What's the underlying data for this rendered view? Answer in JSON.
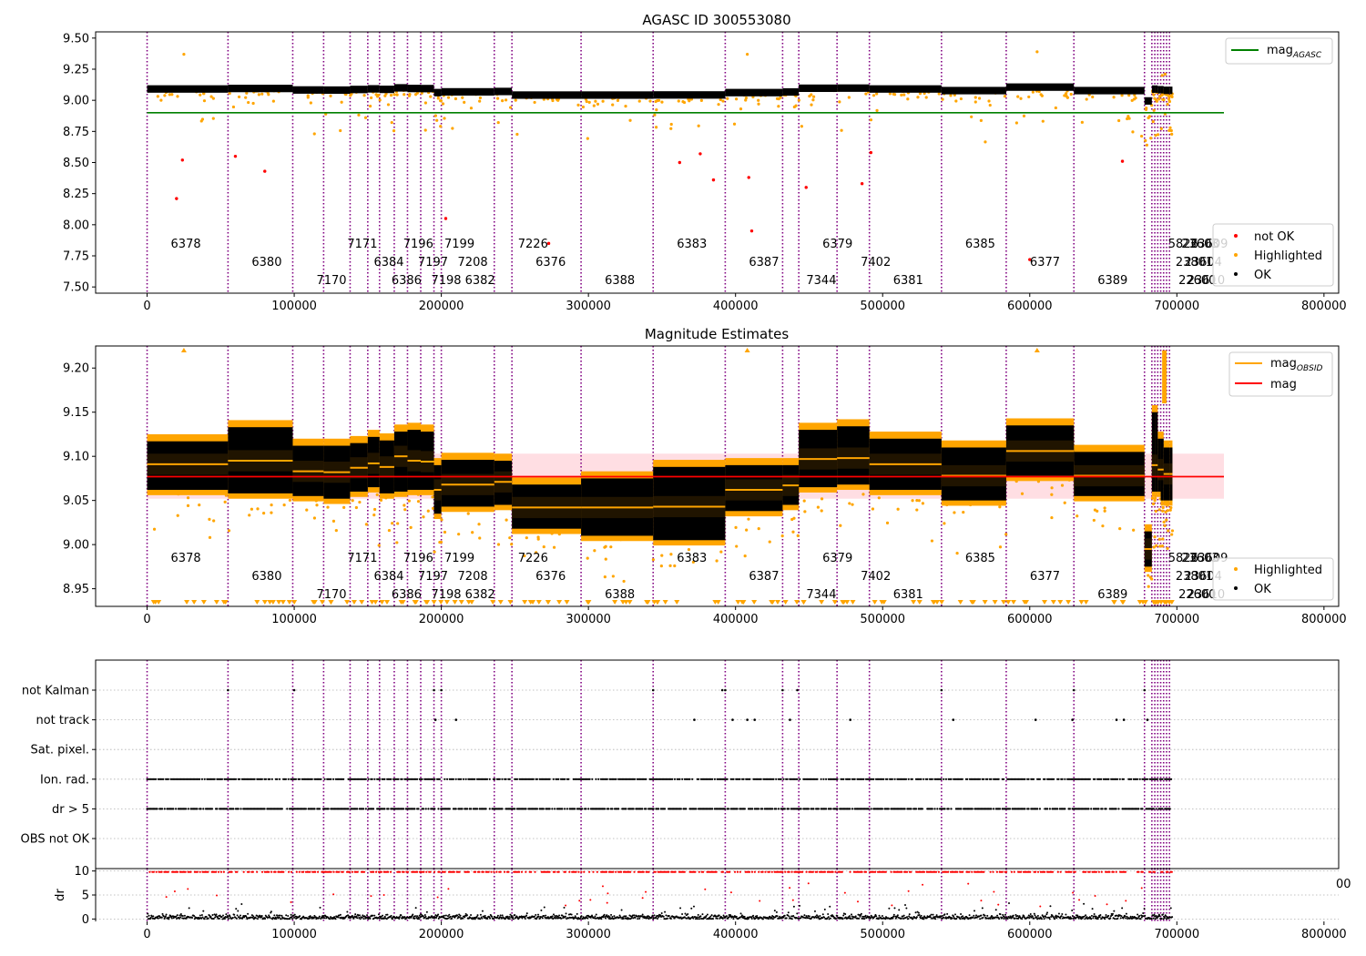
{
  "chart_data": [
    {
      "type": "scatter",
      "title": "AGASC ID 300553080",
      "xlabel": "",
      "ylabel": "",
      "xlim": [
        -35000,
        810000
      ],
      "ylim": [
        7.45,
        9.55
      ],
      "x_ticks": [
        0,
        100000,
        200000,
        300000,
        400000,
        500000,
        600000,
        700000,
        800000
      ],
      "x_tick_labels": [
        "0",
        "100000",
        "200000",
        "300000",
        "400000",
        "500000",
        "600000",
        "700000",
        "800000"
      ],
      "y_ticks": [
        7.5,
        7.75,
        8.0,
        8.25,
        8.5,
        8.75,
        9.0,
        9.25,
        9.5
      ],
      "y_tick_labels": [
        "7.50",
        "7.75",
        "8.00",
        "8.25",
        "8.50",
        "8.75",
        "9.00",
        "9.25",
        "9.50"
      ],
      "legend_top": {
        "position": "top-right",
        "entries": [
          {
            "label": "mag",
            "sub": "AGASC",
            "color": "#008000"
          }
        ]
      },
      "legend_bottom": {
        "position": "lower-right",
        "entries": [
          {
            "label": "not OK",
            "color": "#ff0000"
          },
          {
            "label": "Highlighted",
            "color": "#ffa500"
          },
          {
            "label": "OK",
            "color": "#000000"
          }
        ]
      },
      "mag_agasc": 8.9,
      "mag_agasc_x_range": [
        0,
        732000
      ],
      "series": [
        {
          "name": "OK",
          "color": "#000000",
          "band_halfwidth": 0.025
        },
        {
          "name": "Highlighted",
          "color": "#ffa500"
        },
        {
          "name": "not OK",
          "color": "#ff0000",
          "points": [
            [
              20000,
              8.21
            ],
            [
              24000,
              8.52
            ],
            [
              60000,
              8.55
            ],
            [
              80000,
              8.43
            ],
            [
              203000,
              8.05
            ],
            [
              273000,
              7.85
            ],
            [
              362000,
              8.5
            ],
            [
              376000,
              8.57
            ],
            [
              385000,
              8.36
            ],
            [
              409000,
              8.38
            ],
            [
              411000,
              7.95
            ],
            [
              448000,
              8.3
            ],
            [
              486000,
              8.33
            ],
            [
              492000,
              8.58
            ],
            [
              663000,
              8.51
            ],
            [
              600000,
              7.72
            ]
          ]
        }
      ]
    },
    {
      "type": "scatter",
      "title": "Magnitude Estimates",
      "xlabel": "",
      "ylabel": "",
      "xlim": [
        -35000,
        810000
      ],
      "ylim": [
        8.93,
        9.225
      ],
      "x_ticks": [
        0,
        100000,
        200000,
        300000,
        400000,
        500000,
        600000,
        700000,
        800000
      ],
      "x_tick_labels": [
        "0",
        "100000",
        "200000",
        "300000",
        "400000",
        "500000",
        "600000",
        "700000",
        "800000"
      ],
      "y_ticks": [
        8.95,
        9.0,
        9.05,
        9.1,
        9.15,
        9.2
      ],
      "y_tick_labels": [
        "8.95",
        "9.00",
        "9.05",
        "9.10",
        "9.15",
        "9.20"
      ],
      "legend_top": {
        "position": "top-right",
        "entries": [
          {
            "label": "mag",
            "sub": "OBSID",
            "color": "#ffa500"
          },
          {
            "label": "mag",
            "sub": "",
            "color": "#ff0000"
          }
        ]
      },
      "legend_bottom": {
        "position": "lower-right",
        "entries": [
          {
            "label": "Highlighted",
            "color": "#ffa500"
          },
          {
            "label": "OK",
            "color": "#000000"
          }
        ]
      },
      "mag": 9.077,
      "mag_band": [
        9.052,
        9.103
      ],
      "mag_x_range": [
        0,
        732000
      ]
    },
    {
      "type": "scatter",
      "title": "",
      "xlabel": "",
      "ylabel": "",
      "categories": [
        "not Kalman",
        "not track",
        "Sat. pixel.",
        "Ion. rad.",
        "dr > 5",
        "OBS not OK"
      ],
      "xlim": [
        -35000,
        810000
      ],
      "flags": {
        "not Kalman": [
          55000,
          100000,
          195000,
          200000,
          344000,
          391000,
          393000,
          432000,
          442000,
          540000,
          630000,
          678000
        ],
        "not track": [
          196000,
          210000,
          372000,
          398000,
          408000,
          413000,
          437000,
          478000,
          548000,
          604000,
          629000,
          659000,
          664000,
          680000
        ],
        "Sat. pixel.": [],
        "OBS not OK": [],
        "Ion. rad.": "dense",
        "dr > 5": "dense"
      }
    },
    {
      "type": "scatter",
      "title": "",
      "xlabel": "",
      "ylabel": "dr",
      "xlim": [
        -35000,
        810000
      ],
      "ylim": [
        -0.5,
        10.5
      ],
      "x_ticks": [
        0,
        100000,
        200000,
        300000,
        400000,
        500000,
        600000,
        700000,
        800000
      ],
      "x_tick_labels": [
        "0",
        "100000",
        "200000",
        "300000",
        "400000",
        "500000",
        "600000",
        "700000",
        "800000"
      ],
      "y_ticks": [
        0,
        5,
        10
      ],
      "y_tick_labels": [
        "0",
        "5",
        "10"
      ],
      "clipped_tick_label": "00"
    }
  ],
  "observations": [
    {
      "x": 0,
      "label": "6378",
      "mag": 9.091,
      "lo": 9.062,
      "hi": 9.117
    },
    {
      "x": 55000,
      "label": "6380",
      "mag": 9.095,
      "lo": 9.058,
      "hi": 9.133
    },
    {
      "x": 99000,
      "label": "7170",
      "mag": 9.083,
      "lo": 9.055,
      "hi": 9.112
    },
    {
      "x": 120000,
      "label": "7171",
      "mag": 9.082,
      "lo": 9.052,
      "hi": 9.112
    },
    {
      "x": 138000,
      "label": "6384",
      "mag": 9.087,
      "lo": 9.06,
      "hi": 9.115
    },
    {
      "x": 150000,
      "label": "6386",
      "mag": 9.092,
      "lo": 9.065,
      "hi": 9.122
    },
    {
      "x": 158000,
      "label": "7196",
      "mag": 9.088,
      "lo": 9.058,
      "hi": 9.118
    },
    {
      "x": 168000,
      "label": "7197",
      "mag": 9.1,
      "lo": 9.06,
      "hi": 9.128
    },
    {
      "x": 177000,
      "label": "7198",
      "mag": 9.095,
      "lo": 9.062,
      "hi": 9.13
    },
    {
      "x": 186000,
      "label": "7199",
      "mag": 9.094,
      "lo": 9.062,
      "hi": 9.128
    },
    {
      "x": 195000,
      "label": "7208",
      "mag": 9.062,
      "lo": 9.035,
      "hi": 9.09
    },
    {
      "x": 200000,
      "label": "6382",
      "mag": 9.068,
      "lo": 9.043,
      "hi": 9.096
    },
    {
      "x": 236000,
      "label": "7226",
      "mag": 9.071,
      "lo": 9.045,
      "hi": 9.095
    },
    {
      "x": 248000,
      "label": "6376",
      "mag": 9.042,
      "lo": 9.018,
      "hi": 9.068
    },
    {
      "x": 295000,
      "label": "6388",
      "mag": 9.042,
      "lo": 9.01,
      "hi": 9.075
    },
    {
      "x": 344000,
      "label": "6383",
      "mag": 9.043,
      "lo": 9.005,
      "hi": 9.088
    },
    {
      "x": 393000,
      "label": "6387",
      "mag": 9.062,
      "lo": 9.038,
      "hi": 9.09
    },
    {
      "x": 432000,
      "label": "7344",
      "mag": 9.067,
      "lo": 9.045,
      "hi": 9.09
    },
    {
      "x": 443000,
      "label": "6379",
      "mag": 9.097,
      "lo": 9.065,
      "hi": 9.13
    },
    {
      "x": 469000,
      "label": "7402",
      "mag": 9.098,
      "lo": 9.068,
      "hi": 9.134
    },
    {
      "x": 491000,
      "label": "6381",
      "mag": 9.091,
      "lo": 9.062,
      "hi": 9.12
    },
    {
      "x": 540000,
      "label": "6385",
      "mag": 9.078,
      "lo": 9.05,
      "hi": 9.11
    },
    {
      "x": 584000,
      "label": "6377",
      "mag": 9.106,
      "lo": 9.078,
      "hi": 9.135
    },
    {
      "x": 630000,
      "label": "6389",
      "mag": 9.078,
      "lo": 9.055,
      "hi": 9.105
    },
    {
      "x": 678000,
      "label": "5826",
      "mag": 8.995,
      "lo": 8.975,
      "hi": 9.015
    },
    {
      "x": 683000,
      "label": "23801",
      "mag": 9.09,
      "lo": 9.06,
      "hi": 9.15
    },
    {
      "x": 685000,
      "label": "22600",
      "mag": 9.09,
      "lo": 9.06,
      "hi": 9.15
    },
    {
      "x": 687000,
      "label": "23603",
      "mag": 9.085,
      "lo": 9.06,
      "hi": 9.12
    },
    {
      "x": 689000,
      "label": "23604",
      "mag": 9.085,
      "lo": 9.05,
      "hi": 9.12
    },
    {
      "x": 691000,
      "label": "23610",
      "mag": 9.08,
      "lo": 9.05,
      "hi": 9.11
    },
    {
      "x": 693000,
      "label": "23609",
      "mag": 9.08,
      "lo": 9.05,
      "hi": 9.11
    },
    {
      "x": 695000,
      "label": "",
      "mag": 9.08,
      "lo": 9.05,
      "hi": 9.11
    }
  ],
  "obs_end": 697000,
  "colors": {
    "ok": "#000000",
    "highlighted": "#ffa500",
    "not_ok": "#ff0000",
    "agasc": "#008000",
    "obs_line": "#800080",
    "mag_band": "#ffb6c1",
    "grid": "#b0b0b0"
  }
}
